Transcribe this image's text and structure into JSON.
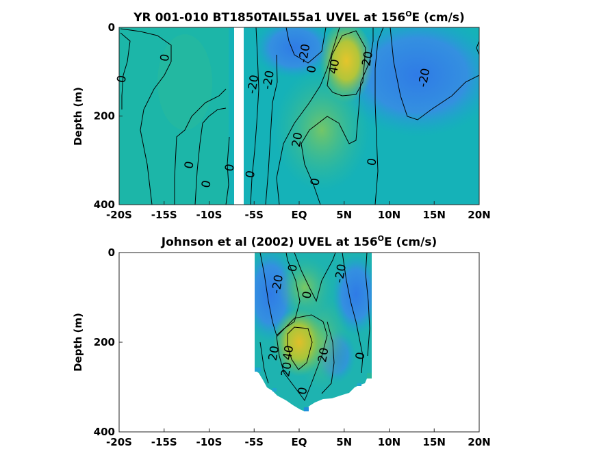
{
  "chart_data": [
    {
      "type": "heatmap",
      "title": "YR 001-010 BT1850TAIL55a1 UVEL at 156",
      "title_sup": "O",
      "title_tail": "E (cm/s)",
      "ylabel": "Depth (m)",
      "xlim": [
        -20,
        20
      ],
      "ylim": [
        0,
        400
      ],
      "y_reversed": true,
      "xticks": [
        -20,
        -15,
        -10,
        -5,
        0,
        5,
        10,
        15,
        20
      ],
      "xtick_labels": [
        "-20S",
        "-15S",
        "-10S",
        "-5S",
        "EQ",
        "5N",
        "10N",
        "15N",
        "20N"
      ],
      "yticks": [
        0,
        200,
        400
      ],
      "ytick_labels": [
        "0",
        "200",
        "400"
      ],
      "colormap": "parula",
      "missing_band": [
        -7.6,
        -6.7
      ],
      "contour_labels": [
        {
          "text": "0",
          "lon": -19.3,
          "depth": 118
        },
        {
          "text": "0",
          "lon": -14.5,
          "depth": 70
        },
        {
          "text": "0",
          "lon": -11.8,
          "depth": 312
        },
        {
          "text": "0",
          "lon": -9.9,
          "depth": 355
        },
        {
          "text": "0",
          "lon": -7.3,
          "depth": 318
        },
        {
          "text": "0",
          "lon": -5.0,
          "depth": 333
        },
        {
          "text": "-20",
          "lon": -4.7,
          "depth": 130
        },
        {
          "text": "-20",
          "lon": -3.0,
          "depth": 120
        },
        {
          "text": "-20",
          "lon": 1.0,
          "depth": 60
        },
        {
          "text": "0",
          "lon": 1.8,
          "depth": 96
        },
        {
          "text": "40",
          "lon": 4.3,
          "depth": 90
        },
        {
          "text": "20",
          "lon": 8.0,
          "depth": 72
        },
        {
          "text": "-20",
          "lon": 14.3,
          "depth": 115
        },
        {
          "text": "20",
          "lon": 0.2,
          "depth": 255
        },
        {
          "text": "0",
          "lon": 8.5,
          "depth": 305
        },
        {
          "text": "0",
          "lon": 2.2,
          "depth": 350
        }
      ]
    },
    {
      "type": "heatmap",
      "title": "Johnson et al (2002) UVEL at 156",
      "title_sup": "O",
      "title_tail": "E (cm/s)",
      "ylabel": "Depth (m)",
      "xlim": [
        -20,
        20
      ],
      "ylim": [
        0,
        400
      ],
      "y_reversed": true,
      "xticks": [
        -20,
        -15,
        -10,
        -5,
        0,
        5,
        10,
        15,
        20
      ],
      "xtick_labels": [
        "-20S",
        "-15S",
        "-10S",
        "-5S",
        "EQ",
        "5N",
        "10N",
        "15N",
        "20N"
      ],
      "yticks": [
        0,
        200,
        400
      ],
      "ytick_labels": [
        "0",
        "200",
        "400"
      ],
      "colormap": "parula",
      "data_extent": [
        -5,
        8
      ],
      "contour_labels": [
        {
          "text": "-20",
          "lon": -2.0,
          "depth": 72
        },
        {
          "text": "0",
          "lon": -0.3,
          "depth": 36
        },
        {
          "text": "0",
          "lon": 1.3,
          "depth": 96
        },
        {
          "text": "-20",
          "lon": 5.0,
          "depth": 48
        },
        {
          "text": "40",
          "lon": -0.8,
          "depth": 225
        },
        {
          "text": "20",
          "lon": -2.4,
          "depth": 226
        },
        {
          "text": "20",
          "lon": -1.0,
          "depth": 262
        },
        {
          "text": "20",
          "lon": 3.1,
          "depth": 230
        },
        {
          "text": "0",
          "lon": 7.2,
          "depth": 232
        },
        {
          "text": "0",
          "lon": 0.8,
          "depth": 310
        }
      ]
    }
  ]
}
